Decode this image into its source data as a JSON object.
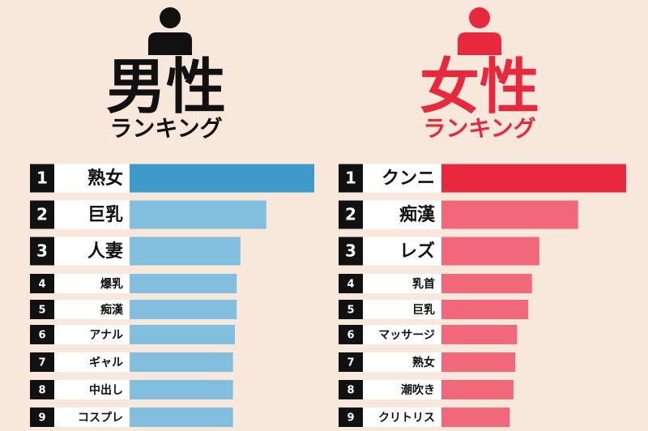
{
  "chart_data": [
    {
      "type": "bar",
      "title": "男性",
      "subtitle": "ランキング",
      "title_color": "#111111",
      "ranks": [
        1,
        2,
        3,
        4,
        5,
        6,
        7,
        8,
        9
      ],
      "categories": [
        "熟女",
        "巨乳",
        "人妻",
        "爆乳",
        "痴漢",
        "アナル",
        "ギャル",
        "中出し",
        "コスプレ"
      ],
      "values": [
        100,
        74,
        60,
        58,
        58,
        57,
        56,
        56,
        56
      ],
      "colors": [
        "#3d9ac9",
        "#82bedd",
        "#82bedd",
        "#82bedd",
        "#82bedd",
        "#82bedd",
        "#82bedd",
        "#82bedd",
        "#82bedd"
      ],
      "xlim": [
        0,
        100
      ]
    },
    {
      "type": "bar",
      "title": "女性",
      "subtitle": "ランキング",
      "title_color": "#e8283c",
      "ranks": [
        1,
        2,
        3,
        4,
        5,
        6,
        7,
        8,
        9
      ],
      "categories": [
        "クンニ",
        "痴漢",
        "レズ",
        "乳首",
        "巨乳",
        "マッサージ",
        "熟女",
        "潮吹き",
        "クリトリス"
      ],
      "values": [
        100,
        74,
        53,
        49,
        47,
        41,
        40,
        39,
        37
      ],
      "colors": [
        "#e8283c",
        "#f1687a",
        "#f1687a",
        "#f1687a",
        "#f1687a",
        "#f1687a",
        "#f1687a",
        "#f1687a",
        "#f1687a"
      ],
      "xlim": [
        0,
        100
      ]
    }
  ]
}
